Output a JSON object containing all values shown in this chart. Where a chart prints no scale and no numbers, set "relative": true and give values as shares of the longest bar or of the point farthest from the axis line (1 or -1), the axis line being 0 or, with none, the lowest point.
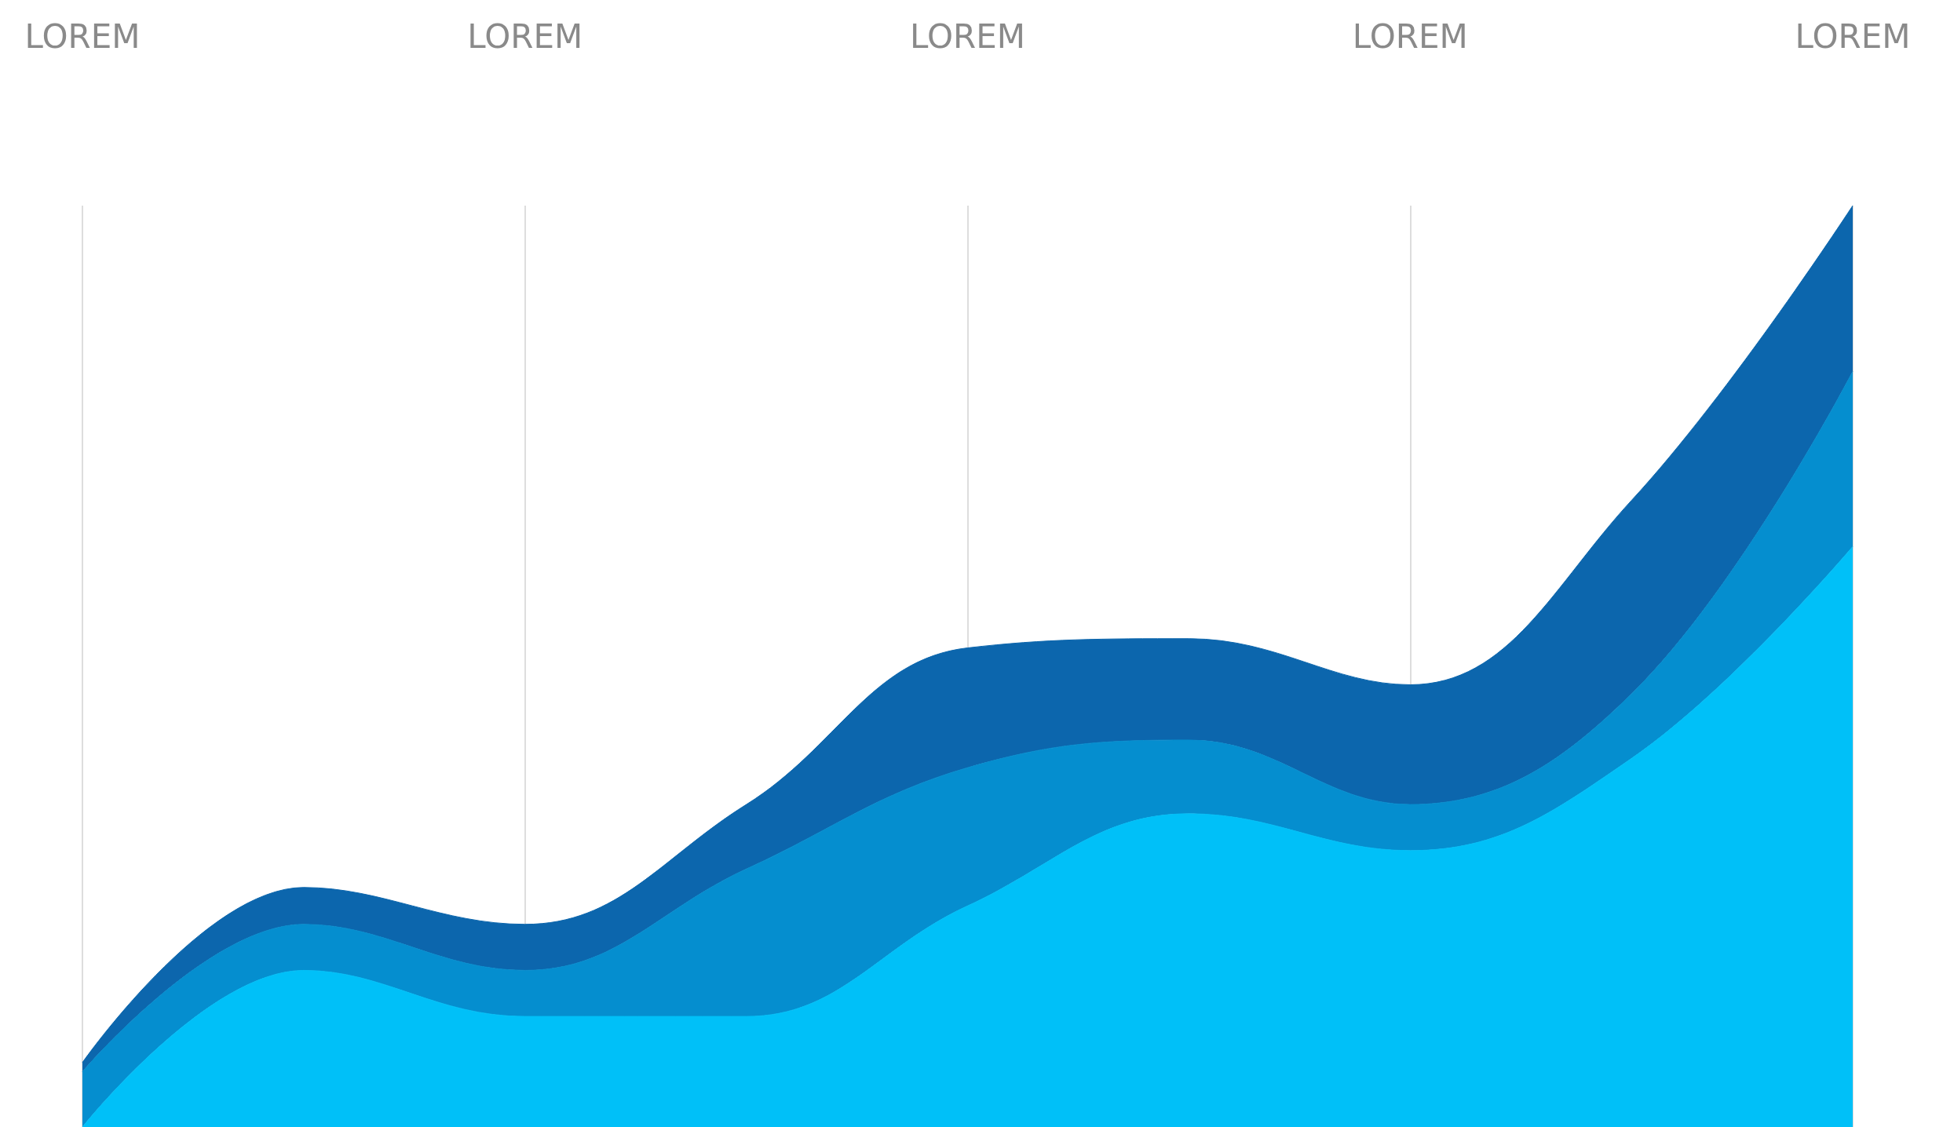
{
  "chart_data": {
    "type": "area",
    "relative": true,
    "stacked": true,
    "grid": "x",
    "marker": "none",
    "categories": [
      "LOREM",
      null,
      "LOREM",
      null,
      "LOREM",
      null,
      "LOREM",
      null,
      "LOREM"
    ],
    "series": [
      {
        "color": "#00c0f8",
        "values": [
          0,
          0.17,
          0.12,
          0.12,
          0.24,
          0.34,
          0.3,
          0.4,
          0.63
        ]
      },
      {
        "color": "#058ecf",
        "values": [
          0.06,
          0.05,
          0.05,
          0.16,
          0.15,
          0.08,
          0.05,
          0.07,
          0.19
        ]
      },
      {
        "color": "#0c66ad",
        "values": [
          0.01,
          0.04,
          0.05,
          0.07,
          0.13,
          0.11,
          0.13,
          0.21,
          0.18
        ]
      }
    ]
  }
}
